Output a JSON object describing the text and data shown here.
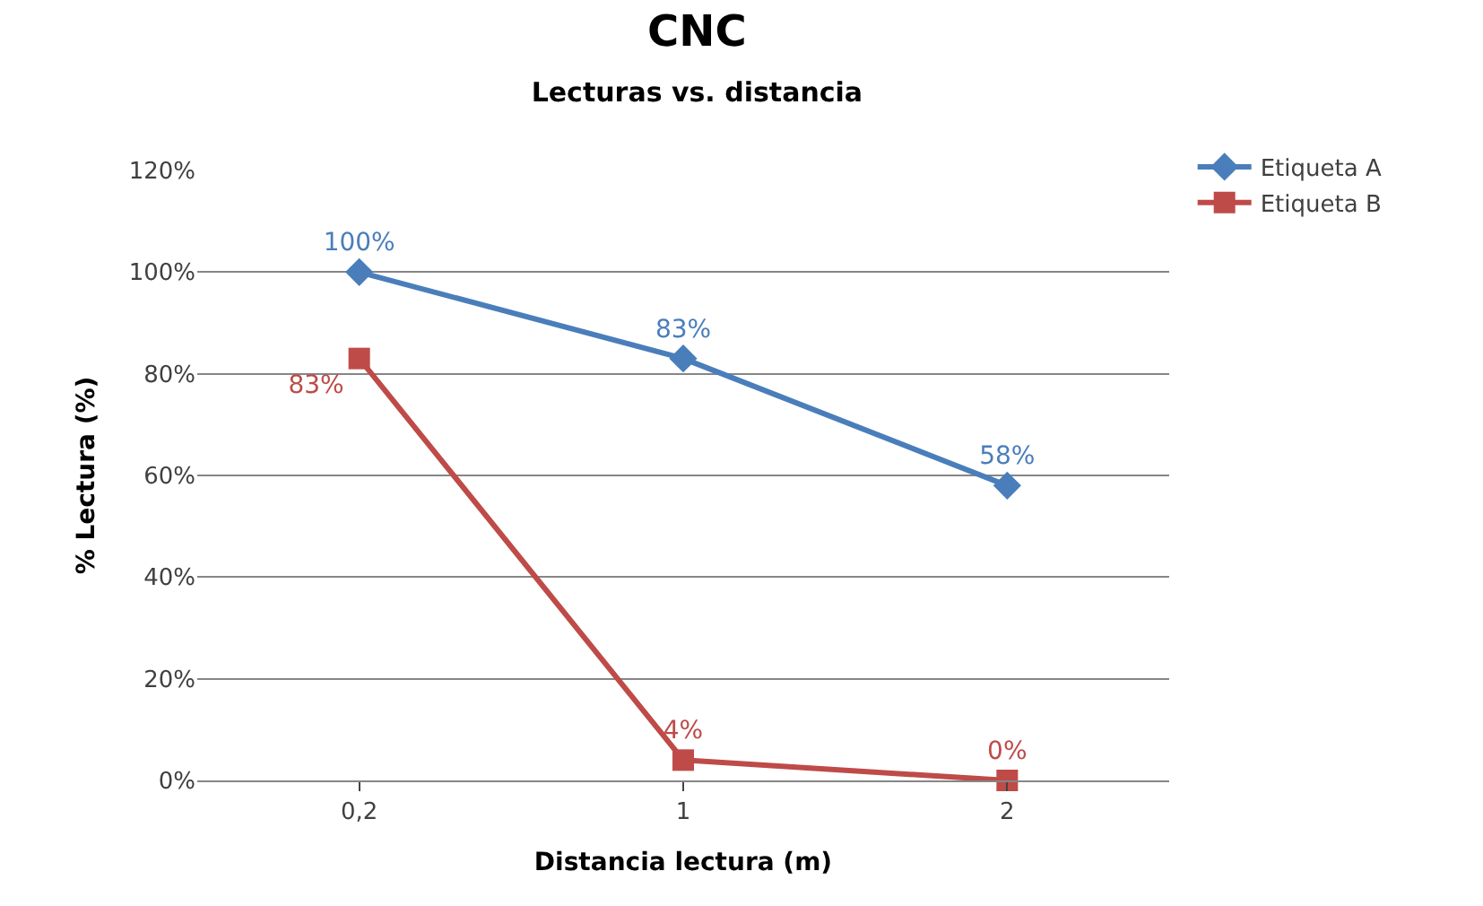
{
  "chart_data": {
    "type": "line",
    "title": "CNC",
    "subtitle": "Lecturas vs. distancia",
    "xlabel": "Distancia lectura (m)",
    "ylabel": "% Lectura (%)",
    "categories": [
      "0,2",
      "1",
      "2"
    ],
    "series": [
      {
        "name": "Etiqueta A",
        "color": "#4a7ebb",
        "values": [
          100,
          83,
          58
        ],
        "value_labels": [
          "100%",
          "83%",
          "58%"
        ],
        "marker": "diamond"
      },
      {
        "name": "Etiqueta B",
        "color": "#be4b48",
        "values": [
          83,
          4,
          0
        ],
        "value_labels": [
          "83%",
          "4%",
          "0%"
        ],
        "marker": "square"
      }
    ],
    "ylim": [
      0,
      120
    ],
    "yticks": [
      {
        "value": 0,
        "label": "0%"
      },
      {
        "value": 20,
        "label": "20%"
      },
      {
        "value": 40,
        "label": "40%"
      },
      {
        "value": 60,
        "label": "60%"
      },
      {
        "value": 80,
        "label": "80%"
      },
      {
        "value": 100,
        "label": "100%"
      },
      {
        "value": 120,
        "label": "120%"
      }
    ],
    "grid": "y",
    "legend": "top right",
    "line_style": "solid"
  }
}
